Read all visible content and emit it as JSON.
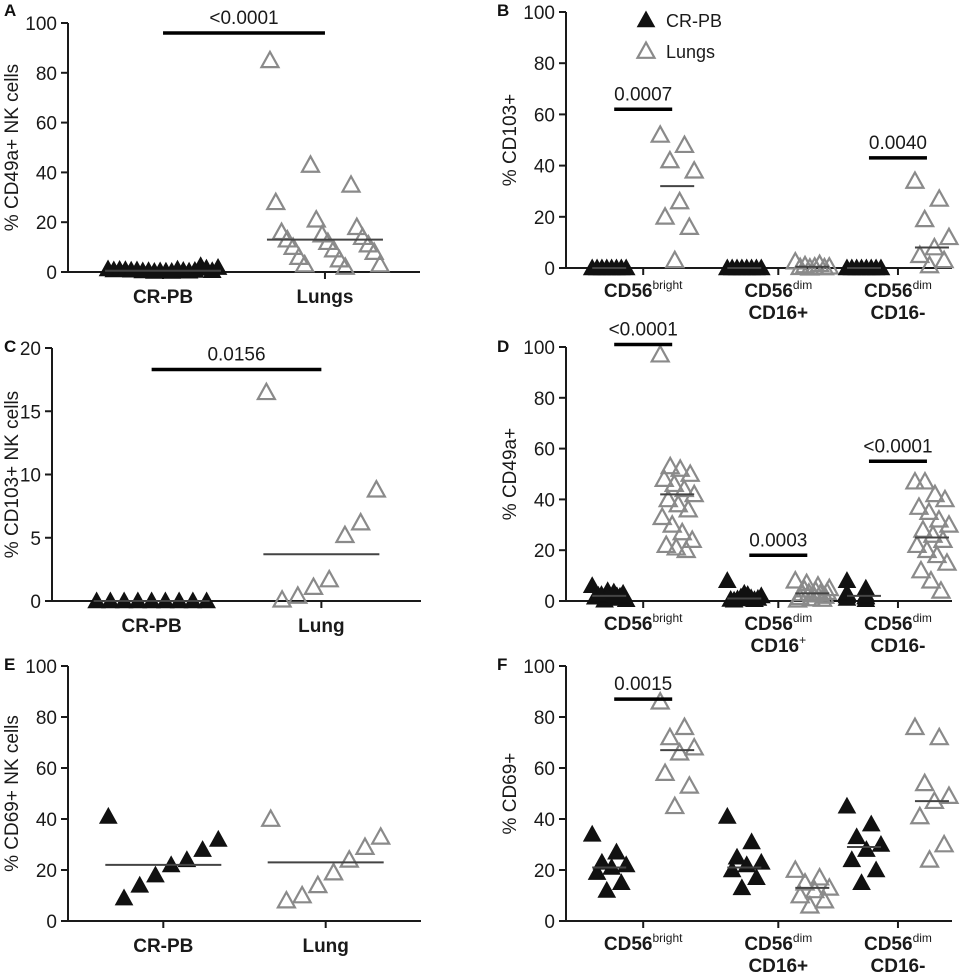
{
  "colors": {
    "cr_pb": "#111111",
    "lungs": "#8a8a8a",
    "axis": "#1a1a1a",
    "median": "#444444"
  },
  "legend": [
    {
      "label": "CR-PB",
      "series": "cr_pb"
    },
    {
      "label": "Lungs",
      "series": "lungs"
    }
  ],
  "chart_data": [
    {
      "panel": "A",
      "type": "scatter",
      "ylabel": "% CD49a+ NK cells",
      "ylim": [
        0,
        100
      ],
      "yticks": [
        0,
        20,
        40,
        60,
        80,
        100
      ],
      "groups": [
        {
          "label": "CR-PB",
          "series": "cr_pb",
          "median": 0.5,
          "values": [
            1.2,
            0.5,
            0.3,
            0.8,
            0.2,
            0.6,
            1.0,
            0.4,
            2.5,
            0.9,
            0.3,
            1.5,
            0.7,
            0.2,
            0.5,
            0.8,
            1.1,
            1.8,
            0.4,
            0.6
          ]
        },
        {
          "label": "Lungs",
          "series": "lungs",
          "median": 13,
          "values": [
            85,
            43,
            35,
            28,
            21,
            18,
            16,
            15,
            14,
            13,
            12,
            11,
            10,
            9,
            8,
            6,
            5,
            3,
            3,
            2
          ]
        }
      ],
      "brackets": [
        {
          "from": 0,
          "to": 1,
          "y": 96,
          "label": "<0.0001"
        }
      ]
    },
    {
      "panel": "B",
      "type": "scatter",
      "ylabel": "% CD103+",
      "ylim": [
        0,
        100
      ],
      "yticks": [
        0,
        20,
        40,
        60,
        80,
        100
      ],
      "categories": [
        {
          "line1": "CD56",
          "sup": "bright",
          "line2": ""
        },
        {
          "line1": "CD56",
          "sup": "dim",
          "line2": "CD16+"
        },
        {
          "line1": "CD56",
          "sup": "dim",
          "line2": "CD16-"
        }
      ],
      "series": [
        {
          "name": "CR-PB",
          "key": "cr_pb",
          "medians": [
            0,
            0,
            0
          ],
          "values": [
            [
              0,
              0,
              0,
              0,
              0,
              0,
              0,
              0
            ],
            [
              0,
              0,
              0,
              0,
              0,
              0,
              0,
              0
            ],
            [
              0,
              0,
              0,
              0,
              0,
              0,
              0,
              0
            ]
          ]
        },
        {
          "name": "Lungs",
          "key": "lungs",
          "medians": [
            32,
            0.5,
            8
          ],
          "values": [
            [
              52,
              48,
              42,
              38,
              26,
              20,
              16,
              3
            ],
            [
              2.5,
              1.5,
              1,
              0.5,
              0.5,
              0.3,
              0.2,
              0.1
            ],
            [
              34,
              27,
              19,
              12,
              8,
              5,
              3,
              1
            ]
          ]
        }
      ],
      "brackets": [
        {
          "cat": 0,
          "y": 62,
          "label": "0.0007"
        },
        {
          "cat": 2,
          "y": 43,
          "label": "0.0040"
        }
      ]
    },
    {
      "panel": "C",
      "type": "scatter",
      "ylabel": "% CD103+ NK cells",
      "ylim": [
        0,
        20
      ],
      "yticks": [
        0,
        5,
        10,
        15,
        20
      ],
      "groups": [
        {
          "label": "CR-PB",
          "series": "cr_pb",
          "median": 0,
          "values": [
            0,
            0,
            0,
            0,
            0,
            0,
            0,
            0,
            0
          ]
        },
        {
          "label": "Lung",
          "series": "lungs",
          "median": 3.7,
          "values": [
            16.5,
            8.8,
            6.2,
            5.2,
            1.7,
            1.1,
            0.4,
            0.1
          ]
        }
      ],
      "brackets": [
        {
          "from": 0,
          "to": 1,
          "y": 18.3,
          "label": "0.0156"
        }
      ]
    },
    {
      "panel": "D",
      "type": "scatter",
      "ylabel": "% CD49a+",
      "ylim": [
        0,
        100
      ],
      "yticks": [
        0,
        20,
        40,
        60,
        80,
        100
      ],
      "categories": [
        {
          "line1": "CD56",
          "sup": "bright",
          "line2": ""
        },
        {
          "line1": "CD56",
          "sup": "dim",
          "line2": "CD16",
          "line2sup": "+"
        },
        {
          "line1": "CD56",
          "sup": "dim",
          "line2": "CD16-"
        }
      ],
      "series": [
        {
          "name": "CR-PB",
          "key": "cr_pb",
          "medians": [
            2,
            1,
            2
          ],
          "values": [
            [
              6,
              4,
              3,
              2.5,
              2,
              1.5,
              1,
              0.5,
              0.3,
              1.8,
              2.2,
              3.5
            ],
            [
              8,
              3,
              2,
              1.5,
              1,
              0.8,
              0.5,
              0.3,
              1.2,
              0.6,
              2.5
            ],
            [
              8,
              5,
              3,
              2.5,
              2,
              1.5,
              1,
              0.5,
              3.2,
              1.8
            ]
          ]
        },
        {
          "name": "Lungs",
          "key": "lungs",
          "medians": [
            42,
            3,
            25
          ],
          "values": [
            [
              97,
              53,
              52,
              50,
              48,
              46,
              44,
              42,
              40,
              38,
              36,
              33,
              30,
              27,
              24,
              22,
              21,
              20
            ],
            [
              8,
              7,
              6,
              5,
              4.5,
              4,
              3.5,
              3,
              2.5,
              2,
              1.5,
              1,
              0.8,
              0.5,
              3.2,
              2.8
            ],
            [
              47,
              47,
              42,
              40,
              37,
              35,
              32,
              30,
              28,
              26,
              24,
              22,
              20,
              18,
              15,
              12,
              8,
              4
            ]
          ]
        }
      ],
      "brackets": [
        {
          "cat": 0,
          "y": 101,
          "label": "<0.0001"
        },
        {
          "cat": 1,
          "y": 18,
          "label": "0.0003"
        },
        {
          "cat": 2,
          "y": 55,
          "label": "<0.0001"
        }
      ]
    },
    {
      "panel": "E",
      "type": "scatter",
      "ylabel": "% CD69+ NK cells",
      "ylim": [
        0,
        100
      ],
      "yticks": [
        0,
        20,
        40,
        60,
        80,
        100
      ],
      "groups": [
        {
          "label": "CR-PB",
          "series": "cr_pb",
          "median": 22,
          "values": [
            41,
            32,
            28,
            24,
            22,
            18,
            14,
            9
          ]
        },
        {
          "label": "Lung",
          "series": "lungs",
          "median": 23,
          "values": [
            40,
            33,
            29,
            24,
            19,
            14,
            10,
            8
          ]
        }
      ],
      "brackets": []
    },
    {
      "panel": "F",
      "type": "scatter",
      "ylabel": "% CD69+",
      "ylim": [
        0,
        100
      ],
      "yticks": [
        0,
        20,
        40,
        60,
        80,
        100
      ],
      "categories": [
        {
          "line1": "CD56",
          "sup": "bright",
          "line2": ""
        },
        {
          "line1": "CD56",
          "sup": "dim",
          "line2": "CD16+"
        },
        {
          "line1": "CD56",
          "sup": "dim",
          "line2": "CD16-"
        }
      ],
      "series": [
        {
          "name": "CR-PB",
          "key": "cr_pb",
          "medians": [
            21,
            21,
            29
          ],
          "values": [
            [
              34,
              27,
              23,
              22,
              21,
              19,
              15,
              12
            ],
            [
              41,
              31,
              25,
              23,
              22,
              20,
              17,
              13
            ],
            [
              45,
              38,
              33,
              30,
              28,
              24,
              20,
              15
            ]
          ]
        },
        {
          "name": "Lungs",
          "key": "lungs",
          "medians": [
            67,
            13,
            47
          ],
          "values": [
            [
              86,
              76,
              72,
              68,
              66,
              58,
              53,
              45
            ],
            [
              20,
              17,
              15,
              13,
              12,
              10,
              8,
              6
            ],
            [
              76,
              72,
              54,
              49,
              47,
              41,
              30,
              24
            ]
          ]
        }
      ],
      "brackets": [
        {
          "cat": 0,
          "y": 87,
          "label": "0.0015"
        }
      ]
    }
  ]
}
